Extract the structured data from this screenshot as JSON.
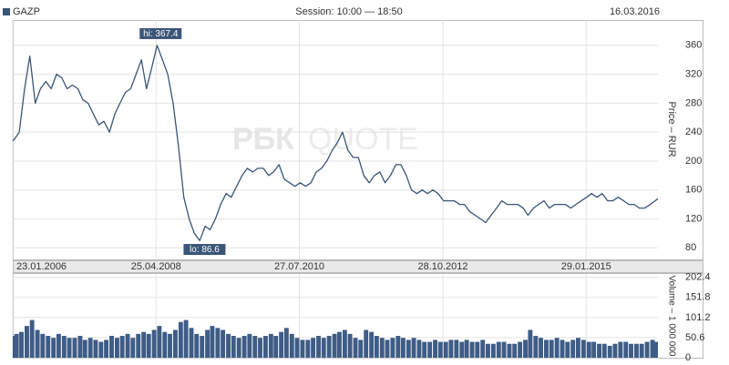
{
  "chart_data": {
    "type": "line",
    "title": "GAZP",
    "subtitle": "Session: 10:00 — 18:50",
    "date": "16.03.2016",
    "watermark": {
      "brand": "РБК",
      "product": "QUOTE"
    },
    "y_label": "Price – RUR",
    "y2_label": "Volume – 1 000 000",
    "xlim": [
      "2006-01-23",
      "2016-03-16"
    ],
    "xticks": [
      {
        "value": "2006-01-23",
        "label": "23.01.2006"
      },
      {
        "value": "2008-04-25",
        "label": "25.04.2008"
      },
      {
        "value": "2010-07-27",
        "label": "27.07.2010"
      },
      {
        "value": "2012-10-28",
        "label": "28.10.2012"
      },
      {
        "value": "2015-01-29",
        "label": "29.01.2015"
      }
    ],
    "ylim": [
      64,
      395
    ],
    "yticks": [
      80,
      120,
      160,
      200,
      240,
      280,
      320,
      360
    ],
    "y2lim": [
      0,
      211
    ],
    "y2ticks": [
      0,
      50.6,
      101.2,
      151.8,
      202.4
    ],
    "grid": true,
    "annotations": [
      {
        "text": "hi: 367.4",
        "value": 367.4,
        "x": "2008-05-16",
        "side": "above"
      },
      {
        "text": "lo: 86.6",
        "value": 86.6,
        "x": "2009-01-23",
        "side": "below"
      }
    ],
    "x": [
      "2006-01-23",
      "2006-02-01",
      "2006-03-01",
      "2006-04-01",
      "2006-05-01",
      "2006-06-01",
      "2006-07-01",
      "2006-08-01",
      "2006-09-01",
      "2006-10-01",
      "2006-11-01",
      "2006-12-01",
      "2007-01-01",
      "2007-02-01",
      "2007-03-01",
      "2007-04-01",
      "2007-05-01",
      "2007-06-01",
      "2007-07-01",
      "2007-08-01",
      "2007-09-01",
      "2007-10-01",
      "2007-11-01",
      "2007-12-01",
      "2008-01-01",
      "2008-02-01",
      "2008-03-01",
      "2008-04-01",
      "2008-05-01",
      "2008-06-01",
      "2008-07-01",
      "2008-08-01",
      "2008-09-01",
      "2008-10-01",
      "2008-11-01",
      "2008-12-01",
      "2009-01-01",
      "2009-02-01",
      "2009-03-01",
      "2009-04-01",
      "2009-05-01",
      "2009-06-01",
      "2009-07-01",
      "2009-08-01",
      "2009-09-01",
      "2009-10-01",
      "2009-11-01",
      "2009-12-01",
      "2010-01-01",
      "2010-02-01",
      "2010-03-01",
      "2010-04-01",
      "2010-05-01",
      "2010-06-01",
      "2010-07-01",
      "2010-08-01",
      "2010-09-01",
      "2010-10-01",
      "2010-11-01",
      "2010-12-01",
      "2011-01-01",
      "2011-02-01",
      "2011-03-01",
      "2011-04-01",
      "2011-05-01",
      "2011-06-01",
      "2011-07-01",
      "2011-08-01",
      "2011-09-01",
      "2011-10-01",
      "2011-11-01",
      "2011-12-01",
      "2012-01-01",
      "2012-02-01",
      "2012-03-01",
      "2012-04-01",
      "2012-05-01",
      "2012-06-01",
      "2012-07-01",
      "2012-08-01",
      "2012-09-01",
      "2012-10-01",
      "2012-11-01",
      "2012-12-01",
      "2013-01-01",
      "2013-02-01",
      "2013-03-01",
      "2013-04-01",
      "2013-05-01",
      "2013-06-01",
      "2013-07-01",
      "2013-08-01",
      "2013-09-01",
      "2013-10-01",
      "2013-11-01",
      "2013-12-01",
      "2014-01-01",
      "2014-02-01",
      "2014-03-01",
      "2014-04-01",
      "2014-05-01",
      "2014-06-01",
      "2014-07-01",
      "2014-08-01",
      "2014-09-01",
      "2014-10-01",
      "2014-11-01",
      "2014-12-01",
      "2015-01-01",
      "2015-02-01",
      "2015-03-01",
      "2015-04-01",
      "2015-05-01",
      "2015-06-01",
      "2015-07-01",
      "2015-08-01",
      "2015-09-01",
      "2015-10-01",
      "2015-11-01",
      "2015-12-01",
      "2016-01-01",
      "2016-02-01",
      "2016-03-16"
    ],
    "series": [
      {
        "name": "GAZP",
        "color": "#3b5578",
        "values": [
          228,
          230,
          240,
          300,
          345,
          280,
          300,
          310,
          300,
          320,
          315,
          300,
          305,
          300,
          285,
          280,
          265,
          250,
          255,
          240,
          265,
          280,
          295,
          300,
          320,
          340,
          300,
          330,
          360,
          340,
          320,
          280,
          220,
          150,
          120,
          100,
          90,
          110,
          105,
          120,
          140,
          155,
          150,
          165,
          180,
          190,
          185,
          190,
          190,
          180,
          185,
          195,
          175,
          170,
          165,
          170,
          165,
          170,
          185,
          190,
          200,
          215,
          225,
          240,
          215,
          205,
          205,
          180,
          170,
          180,
          185,
          170,
          180,
          195,
          195,
          180,
          160,
          155,
          160,
          155,
          160,
          155,
          145,
          145,
          145,
          140,
          140,
          130,
          125,
          120,
          115,
          125,
          135,
          145,
          140,
          140,
          140,
          135,
          125,
          135,
          140,
          145,
          135,
          140,
          140,
          140,
          135,
          140,
          145,
          150,
          155,
          150,
          155,
          145,
          145,
          150,
          145,
          140,
          140,
          135,
          135,
          140,
          148
        ]
      },
      {
        "name": "Volume",
        "color": "#3e5c86",
        "axis": "y2",
        "values": [
          55,
          60,
          65,
          80,
          95,
          70,
          60,
          55,
          50,
          60,
          55,
          50,
          50,
          55,
          45,
          50,
          45,
          40,
          45,
          55,
          50,
          55,
          60,
          50,
          60,
          65,
          60,
          70,
          80,
          65,
          60,
          70,
          90,
          95,
          75,
          60,
          55,
          70,
          80,
          75,
          70,
          60,
          55,
          50,
          55,
          60,
          55,
          50,
          55,
          60,
          55,
          65,
          75,
          60,
          50,
          45,
          45,
          50,
          55,
          50,
          55,
          60,
          65,
          70,
          60,
          50,
          45,
          70,
          65,
          55,
          50,
          45,
          50,
          55,
          50,
          45,
          50,
          45,
          40,
          40,
          45,
          40,
          40,
          45,
          45,
          40,
          45,
          40,
          40,
          45,
          35,
          35,
          40,
          40,
          35,
          35,
          40,
          45,
          70,
          55,
          50,
          45,
          45,
          50,
          45,
          40,
          45,
          50,
          45,
          40,
          40,
          35,
          35,
          30,
          35,
          40,
          40,
          35,
          35,
          35,
          40,
          45,
          40
        ]
      }
    ]
  }
}
